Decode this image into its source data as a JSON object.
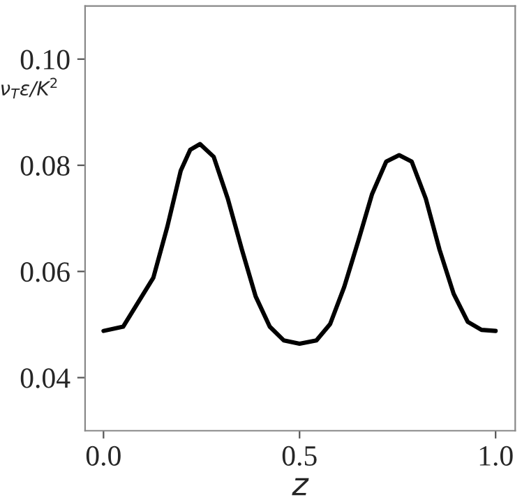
{
  "chart_data": {
    "type": "line",
    "xlabel": "z",
    "ylabel": "ν$_{T}$ε/K$^{2}$",
    "x": [
      0,
      0.05,
      0.127,
      0.163,
      0.197,
      0.221,
      0.246,
      0.281,
      0.317,
      0.353,
      0.388,
      0.424,
      0.46,
      0.5,
      0.543,
      0.578,
      0.614,
      0.65,
      0.685,
      0.721,
      0.754,
      0.786,
      0.822,
      0.857,
      0.893,
      0.929,
      0.964,
      1.0
    ],
    "series": [
      {
        "color": "#000000",
        "values": [
          0.0488,
          0.0496,
          0.0588,
          0.0685,
          0.079,
          0.0829,
          0.084,
          0.0816,
          0.0737,
          0.0641,
          0.0553,
          0.0496,
          0.047,
          0.0464,
          0.047,
          0.0501,
          0.0571,
          0.0658,
          0.0746,
          0.0807,
          0.0819,
          0.0807,
          0.0737,
          0.0641,
          0.0558,
          0.0505,
          0.049,
          0.0488
        ]
      }
    ],
    "xlim": [
      -0.047,
      1.05
    ],
    "ylim": [
      0.03,
      0.11
    ],
    "xticks": [
      {
        "value": 0,
        "label": "0.0"
      },
      0.5,
      {
        "value": 1,
        "label": "1.0"
      }
    ],
    "yticks": [
      0.04,
      0.06,
      0.08,
      {
        "value": 0.1,
        "label": "0.10"
      }
    ],
    "grid": false,
    "legend": false
  }
}
